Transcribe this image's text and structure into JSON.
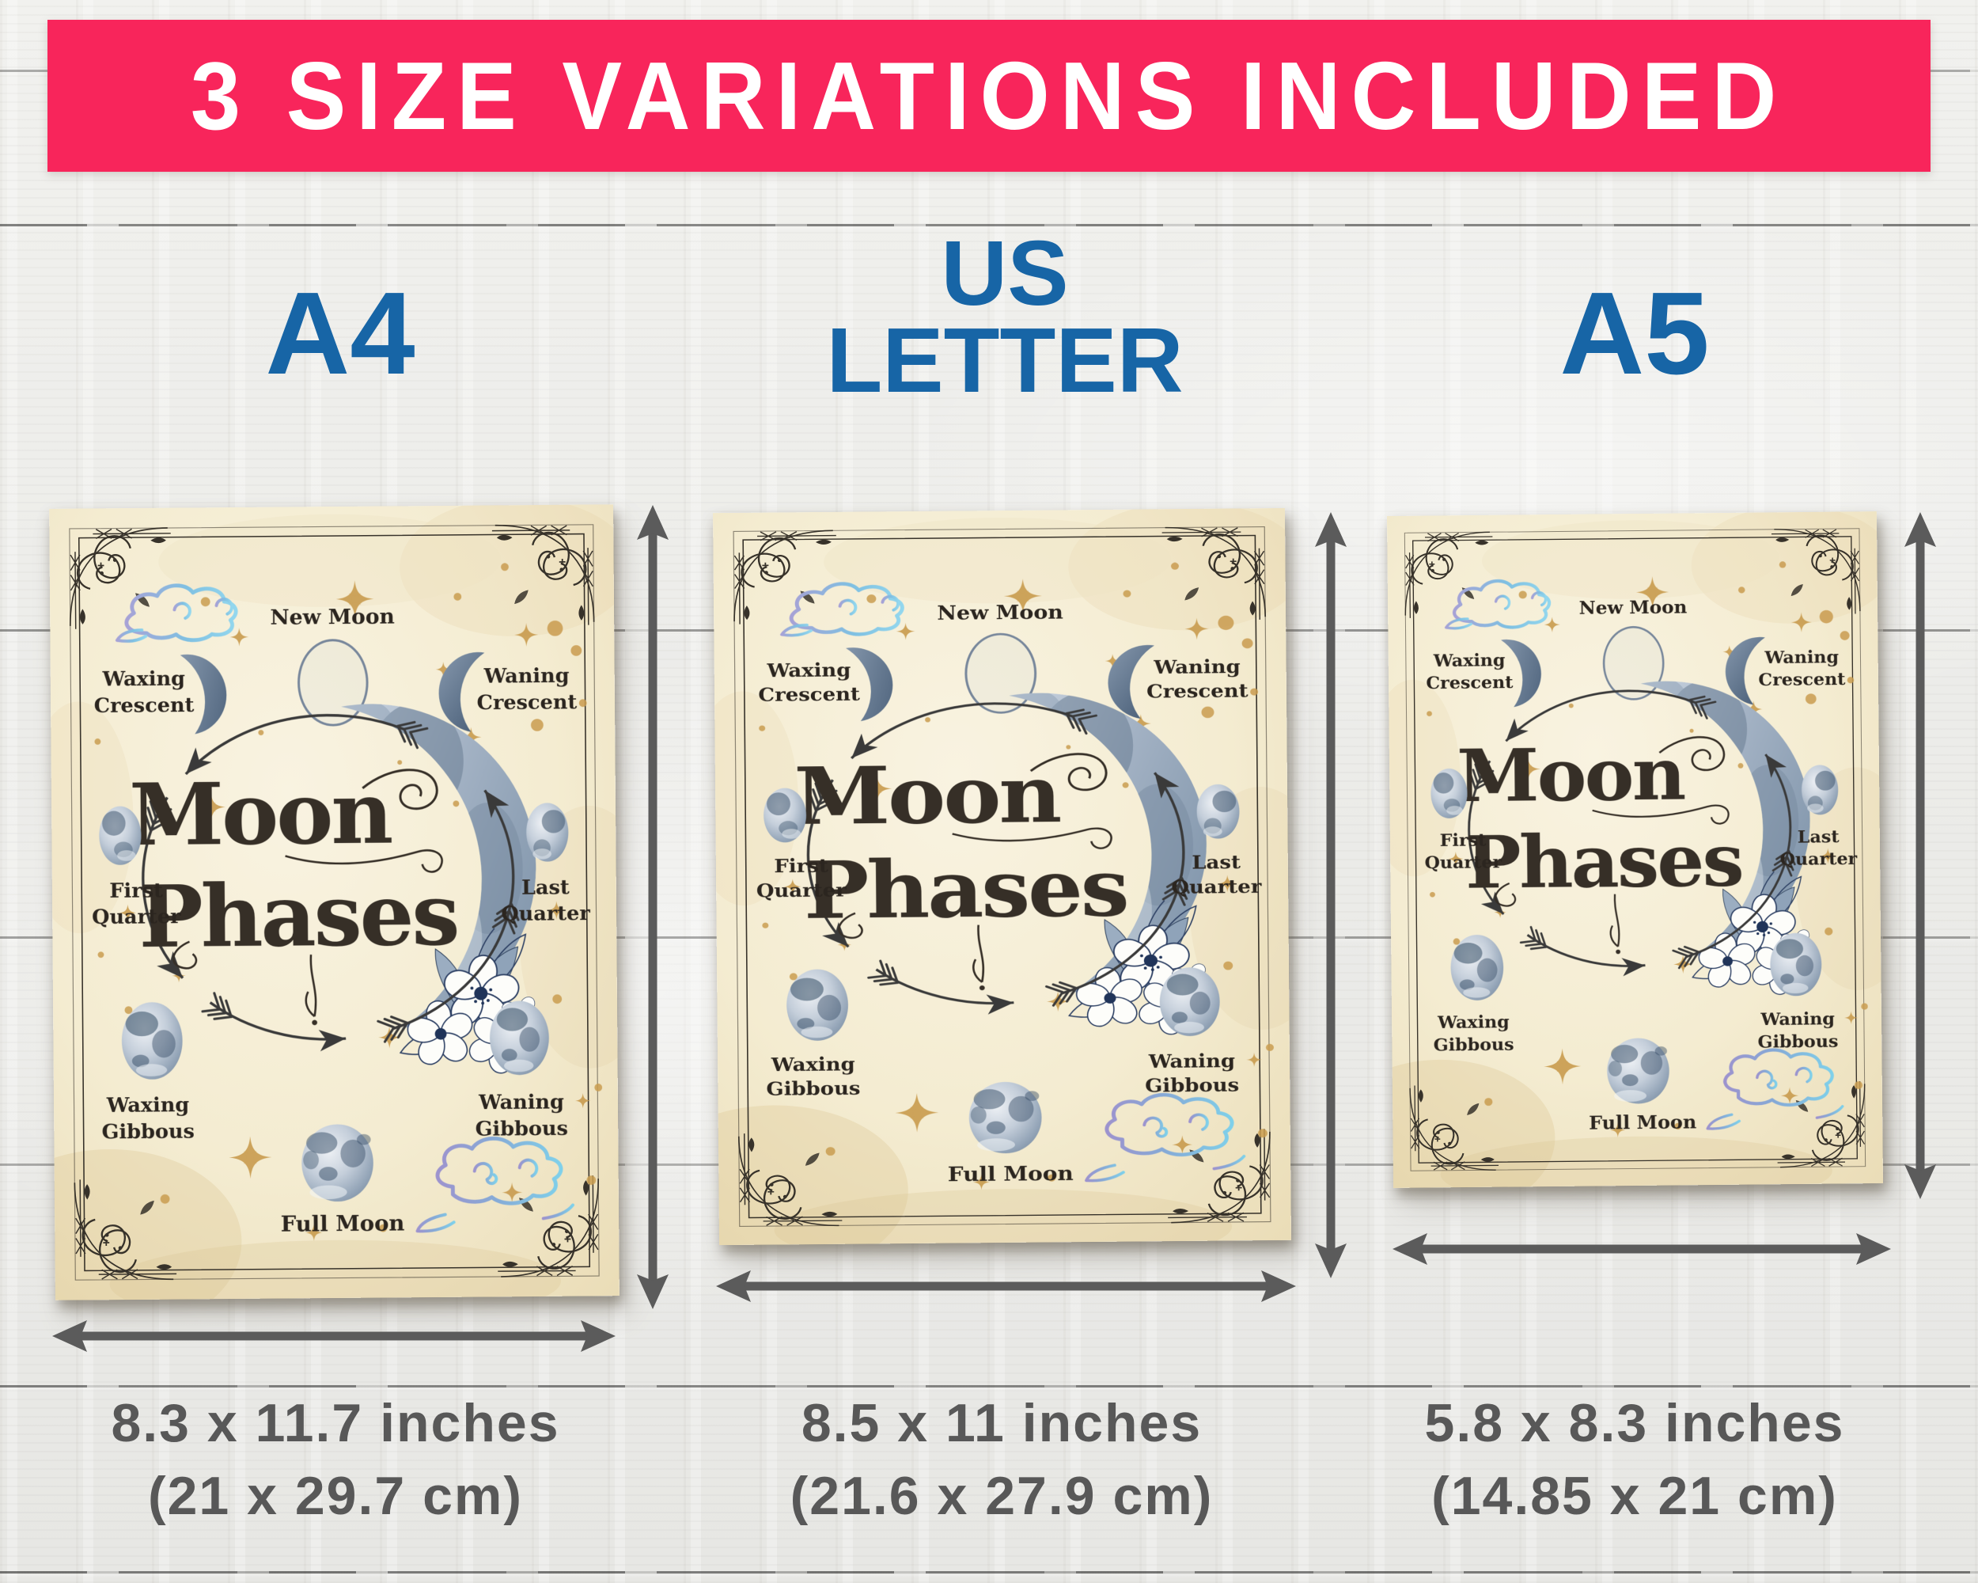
{
  "banner": {
    "text": "3 SIZE VARIATIONS INCLUDED"
  },
  "colors": {
    "banner_bg": "#F8255B",
    "banner_fg": "#FFFFFF",
    "label_blue": "#1765A6",
    "dimension_text_gray": "#585858",
    "arrow_gray": "#5B5B5B",
    "paper_cream": "#F4ECD1",
    "gold_accent": "#C99C4F",
    "ink_dark": "#362F27",
    "moon_slate": "#76889C",
    "cloud_blue": "#7FC0E2"
  },
  "variations": [
    {
      "label": "A4",
      "inches": "8.3 x 11.7 inches",
      "cm": "(21 x 29.7 cm)"
    },
    {
      "label": "US\nLETTER",
      "inches": "8.5 x 11 inches",
      "cm": "(21.6 x 27.9 cm)"
    },
    {
      "label": "A5",
      "inches": "5.8 x 8.3 inches",
      "cm": "(14.85 x 21 cm)"
    }
  ],
  "poster": {
    "title": [
      "Moon",
      "Phases"
    ],
    "phases": {
      "new_moon": "New Moon",
      "waxing_crescent": [
        "Waxing",
        "Crescent"
      ],
      "waning_crescent": [
        "Waning",
        "Crescent"
      ],
      "first_quarter": [
        "First",
        "Quarter"
      ],
      "last_quarter": [
        "Last",
        "Quarter"
      ],
      "waxing_gibbous": [
        "Waxing",
        "Gibbous"
      ],
      "waning_gibbous": [
        "Waning",
        "Gibbous"
      ],
      "full_moon": "Full Moon"
    }
  }
}
